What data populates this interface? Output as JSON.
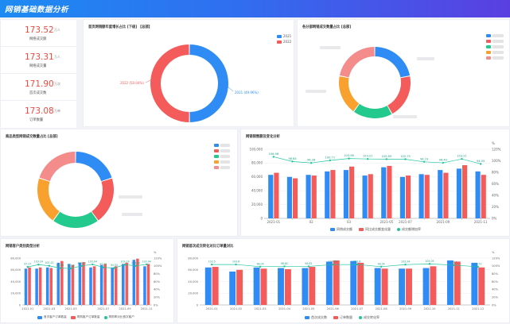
{
  "header": {
    "title": "网销基础数据分析"
  },
  "colors": {
    "blue": "#2f8cf4",
    "red": "#f45b5b",
    "green": "#24c98e",
    "orange": "#f8a12e",
    "pink": "#f48c8c",
    "teal": "#20c5a0"
  },
  "kpis": [
    {
      "value": "173.52",
      "unit": "万人",
      "label": "网络成交额"
    },
    {
      "value": "173.31",
      "unit": "万人",
      "label": "网络成交量"
    },
    {
      "value": "171.90",
      "unit": "万次",
      "label": "首次成交数"
    },
    {
      "value": "173.08",
      "unit": "万单",
      "label": "订单数量"
    }
  ],
  "panels": {
    "pie1": {
      "title": "首页网销额年度增长占比 [下级] 【总部】"
    },
    "pie2": {
      "title": "各分部网销成交数量占比 [总部]"
    },
    "pie3": {
      "title": "商品类型网销成交数量占比 [总部]"
    },
    "bar1": {
      "title": "网销销售额及变化分析"
    },
    "bar2": {
      "title": "网销客户类别类型分析"
    },
    "bar3": {
      "title": "网销首次成交转化对比订单量对比"
    }
  },
  "chart_data": [
    {
      "type": "pie",
      "title": "首页网销额年度增长占比 [下级] 【总部】",
      "legend": [
        "2021",
        "2022"
      ],
      "values": [
        49.96,
        50.04
      ],
      "labels": [
        "2021 (49.96%)",
        "2022 (50.04%)"
      ]
    },
    {
      "type": "pie",
      "title": "各分部网销成交数量占比 [总部]",
      "values": [
        22,
        20,
        18,
        18,
        22
      ],
      "colors": [
        "#2f8cf4",
        "#f45b5b",
        "#24c98e",
        "#f8a12e",
        "#f48c8c"
      ]
    },
    {
      "type": "pie",
      "title": "商品类型网销成交数量占比 [总部]",
      "values": [
        20,
        20,
        20,
        20,
        20
      ],
      "colors": [
        "#2f8cf4",
        "#f45b5b",
        "#24c98e",
        "#f8a12e",
        "#f48c8c"
      ]
    },
    {
      "type": "bar",
      "title": "网销销售额及变化分析",
      "categories": [
        "2021-01",
        "2021-02",
        "2021-03",
        "2021-04",
        "2021-05",
        "2021-06",
        "2021-07",
        "2021-08",
        "2021-09",
        "2021-10",
        "2021-11",
        "2021-12"
      ],
      "xticks": [
        "2021-01",
        "02",
        "03",
        "2021-05",
        "2021-07",
        "2021-09",
        "2021-11"
      ],
      "ylim": [
        0,
        100000
      ],
      "yticks": [
        "0",
        "20,000",
        "40,000",
        "60,000",
        "80,000",
        "100,000"
      ],
      "y2lim": [
        0,
        120
      ],
      "y2ticks": [
        "0%",
        "20%",
        "40%",
        "60%",
        "80%",
        "100%",
        "120%"
      ],
      "y2unit": "%",
      "series": [
        {
          "name": "网销成交额",
          "values": [
            63000,
            60000,
            63000,
            68000,
            70000,
            62000,
            74000,
            60000,
            64000,
            70000,
            72000,
            68000
          ]
        },
        {
          "name": "同比成交额变化量",
          "values": [
            66000,
            58000,
            62000,
            70000,
            75000,
            64000,
            76000,
            62000,
            63000,
            66000,
            77000,
            63000
          ]
        },
        {
          "name": "成交额增加率",
          "line": true,
          "values": [
            106.98,
            98.84,
            96.28,
            100.71,
            103.98,
            103.21,
            102.89,
            102.75,
            98.19,
            96.49,
            103.21,
            94.55
          ]
        }
      ],
      "labels": [
        "106.98",
        "98.84",
        "96.28",
        "100.71",
        "103.98",
        "103.21",
        "102.89",
        "102.75",
        "98.19",
        "96.49",
        "103.21",
        "94.55"
      ]
    },
    {
      "type": "bar",
      "title": "网销客户类别类型分析",
      "categories": [
        "2021-01",
        "2021-02",
        "2021-03",
        "2021-04",
        "2021-05",
        "2021-06",
        "2021-07",
        "2021-08",
        "2021-09",
        "2021-10",
        "2021-11",
        "2021-12"
      ],
      "xticks": [
        "2021-01",
        "2021-03",
        "2021-05",
        "2021-07",
        "2021-09",
        "2021-11"
      ],
      "ylim": [
        0,
        80000
      ],
      "yticks": [
        "0",
        "20,000",
        "40,000",
        "60,000",
        "80,000"
      ],
      "y2lim": [
        0,
        120
      ],
      "y2ticks": [
        "0%",
        "20%",
        "40%",
        "60%",
        "80%",
        "100%",
        "120%"
      ],
      "y2unit": "%",
      "series": [
        {
          "name": "首次客户订单数量",
          "values": [
            62000,
            62000,
            64000,
            72000,
            70000,
            72000,
            64000,
            68000,
            64000,
            70000,
            77000,
            66000
          ]
        },
        {
          "name": "再购客户订单数量",
          "values": [
            64000,
            64000,
            63000,
            75000,
            68000,
            73000,
            66000,
            70000,
            66000,
            72000,
            79000,
            70000
          ]
        },
        {
          "name": "再购率对比首次客户",
          "line": true,
          "values": [
            97.37,
            103.24,
            100.22,
            94.35,
            93.56,
            100.02,
            103.94,
            96.15,
            94.55,
            103.24,
            100.02,
            103.94
          ]
        }
      ],
      "labels": [
        "97.37",
        "103.24",
        "100.22",
        "94.35",
        "93.56",
        "100.02",
        "103.94",
        "96.15",
        "94.55",
        "103.24",
        "100.02",
        "103.94"
      ]
    },
    {
      "type": "bar",
      "title": "网销首次成交转化对比订单量对比",
      "categories": [
        "2021-01",
        "2021-02",
        "2021-03",
        "2021-04",
        "2021-05",
        "2021-06",
        "2021-07",
        "2021-08",
        "2021-09",
        "2021-10",
        "2021-11",
        "2021-12"
      ],
      "xticks": [
        "2021-01",
        "2021-02",
        "2021-03",
        "2021-04",
        "2021-05",
        "2021-06",
        "2021-07",
        "2021-08",
        "2021-09",
        "2021-10",
        "2021-11",
        "2021-12"
      ],
      "ylim": [
        0,
        80000
      ],
      "yticks": [
        "0",
        "20,000",
        "40,000",
        "60,000",
        "80,000"
      ],
      "y2lim": [
        0,
        120
      ],
      "y2ticks": [
        "0%",
        "20%",
        "40%",
        "60%",
        "80%",
        "100%",
        "120%"
      ],
      "y2unit": "%",
      "series": [
        {
          "name": "首次成交数",
          "values": [
            64000,
            57000,
            64000,
            63000,
            63000,
            74000,
            75000,
            63000,
            62000,
            63000,
            76000,
            72000
          ]
        },
        {
          "name": "订单数量",
          "values": [
            65000,
            60000,
            62000,
            61000,
            65000,
            76000,
            72000,
            62000,
            62000,
            66000,
            74000,
            64000
          ]
        },
        {
          "name": "成交转化率",
          "line": true,
          "values": [
            103.5,
            103.6,
            98.04,
            98.82,
            98.82,
            103.34,
            103.6,
            98.04,
            103.34,
            105.05,
            102.1,
            97.73
          ]
        }
      ],
      "labels": [
        "103.5",
        "103.6",
        "98.04",
        "98.82",
        "98.82",
        "103.34",
        "103.6",
        "98.04",
        "103.34",
        "105.05",
        "102.1",
        "97.73"
      ]
    }
  ]
}
